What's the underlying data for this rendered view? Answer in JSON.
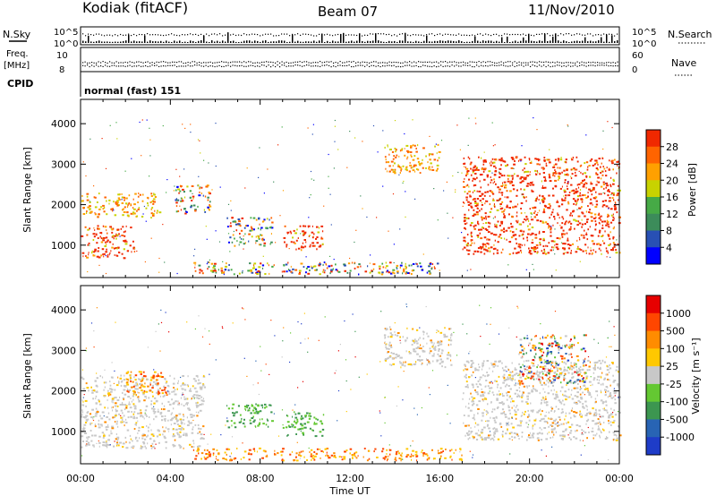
{
  "header": {
    "station": "Kodiak (fitACF)",
    "beam": "Beam 07",
    "date": "11/Nov/2010"
  },
  "noise_panel": {
    "left_label": "N.Sky",
    "right_label": "N.Search",
    "ticks_left": [
      "10^5",
      "10^0"
    ],
    "ticks_right": [
      "10^5",
      "10^0"
    ]
  },
  "freq_panel": {
    "left_label_1": "Freq.",
    "left_label_2": "[MHz]",
    "right_label": "Nave",
    "ticks_left": [
      "10",
      "8"
    ],
    "ticks_right": [
      "60",
      "0"
    ]
  },
  "cpid": {
    "label": "CPID",
    "mode": "normal (fast) 151"
  },
  "chart_data": [
    {
      "type": "heatmap",
      "title": "Power",
      "ylabel": "Slant Range [km]",
      "xlabel": "",
      "ylim": [
        200,
        4600
      ],
      "y_ticks": [
        "1000",
        "2000",
        "3000",
        "4000"
      ],
      "colorbar": {
        "label": "Power [dB]",
        "ticks": [
          "4",
          "8",
          "12",
          "16",
          "20",
          "24",
          "28"
        ],
        "colors": [
          "#0000ff",
          "#2850b4",
          "#3c8c5a",
          "#46aa46",
          "#c8d200",
          "#ffa000",
          "#ff6400",
          "#f02800"
        ]
      },
      "echo_regions": [
        {
          "t": [
            0.0,
            2.4
          ],
          "r": [
            700,
            1500
          ],
          "value": "red"
        },
        {
          "t": [
            0.0,
            3.5
          ],
          "r": [
            1700,
            2300
          ],
          "value": "orange"
        },
        {
          "t": [
            4.2,
            5.8
          ],
          "r": [
            1800,
            2500
          ],
          "value": "mixed"
        },
        {
          "t": [
            6.5,
            8.5
          ],
          "r": [
            1000,
            1700
          ],
          "value": "mixed"
        },
        {
          "t": [
            9.0,
            10.8
          ],
          "r": [
            900,
            1500
          ],
          "value": "red"
        },
        {
          "t": [
            5.0,
            16.0
          ],
          "r": [
            300,
            600
          ],
          "value": "mixed"
        },
        {
          "t": [
            13.5,
            16.0
          ],
          "r": [
            2800,
            3500
          ],
          "value": "orange"
        },
        {
          "t": [
            17.0,
            24.0
          ],
          "r": [
            800,
            3200
          ],
          "value": "red"
        }
      ]
    },
    {
      "type": "heatmap",
      "title": "Velocity",
      "ylabel": "Slant Range [km]",
      "xlabel": "Time UT",
      "ylim": [
        200,
        4600
      ],
      "y_ticks": [
        "1000",
        "2000",
        "3000",
        "4000"
      ],
      "x_ticks": [
        "00:00",
        "04:00",
        "08:00",
        "12:00",
        "16:00",
        "20:00",
        "00:00"
      ],
      "colorbar": {
        "label": "Velocity [m s⁻¹]",
        "ticks": [
          "1000",
          "500",
          "100",
          "25",
          "-25",
          "-100",
          "-500",
          "-1000"
        ],
        "colors": [
          "#1e3cc8",
          "#2864b4",
          "#3c9650",
          "#64c832",
          "#c8c8c8",
          "#ffc800",
          "#ff8c00",
          "#ff4600",
          "#e60000"
        ]
      },
      "echo_regions": [
        {
          "t": [
            0.0,
            5.5
          ],
          "r": [
            600,
            2400
          ],
          "value": "grey"
        },
        {
          "t": [
            2.0,
            4.0
          ],
          "r": [
            1900,
            2500
          ],
          "value": "orange"
        },
        {
          "t": [
            6.5,
            8.5
          ],
          "r": [
            1100,
            1700
          ],
          "value": "green"
        },
        {
          "t": [
            9.0,
            10.8
          ],
          "r": [
            900,
            1500
          ],
          "value": "green"
        },
        {
          "t": [
            5.0,
            17.0
          ],
          "r": [
            300,
            600
          ],
          "value": "orange"
        },
        {
          "t": [
            13.5,
            16.5
          ],
          "r": [
            2600,
            3600
          ],
          "value": "grey"
        },
        {
          "t": [
            17.0,
            24.0
          ],
          "r": [
            800,
            2800
          ],
          "value": "grey"
        },
        {
          "t": [
            19.5,
            22.5
          ],
          "r": [
            2200,
            3400
          ],
          "value": "mixed"
        }
      ]
    }
  ]
}
